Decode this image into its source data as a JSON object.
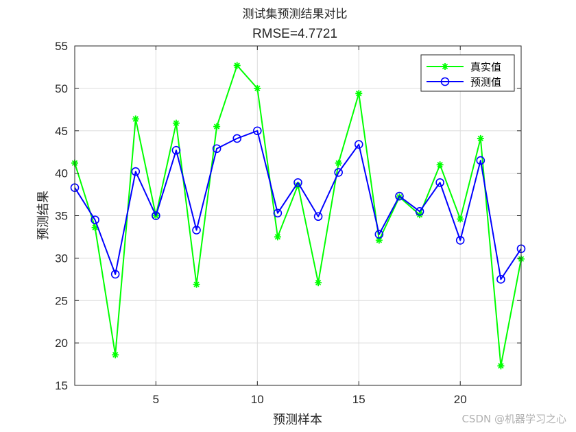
{
  "chart_data": {
    "type": "line",
    "title": "测试集预测结果对比",
    "subtitle": "RMSE=4.7721",
    "xlabel": "预测样本",
    "ylabel": "预测结果",
    "xlim": [
      1,
      23
    ],
    "ylim": [
      15,
      55
    ],
    "xticks": [
      5,
      10,
      15,
      20
    ],
    "yticks": [
      15,
      20,
      25,
      30,
      35,
      40,
      45,
      50,
      55
    ],
    "grid": true,
    "legend_position": "top-right",
    "x": [
      1,
      2,
      3,
      4,
      5,
      6,
      7,
      8,
      9,
      10,
      11,
      12,
      13,
      14,
      15,
      16,
      17,
      18,
      19,
      20,
      21,
      22,
      23
    ],
    "series": [
      {
        "name": "真实值",
        "color": "#00ff00",
        "marker": "asterisk",
        "values": [
          41.2,
          33.6,
          18.6,
          46.4,
          35.0,
          45.9,
          26.9,
          45.5,
          52.7,
          50.0,
          32.5,
          38.6,
          27.1,
          41.2,
          49.4,
          32.1,
          37.2,
          35.1,
          41.0,
          34.6,
          44.1,
          17.3,
          29.9
        ]
      },
      {
        "name": "预测值",
        "color": "#0000ff",
        "marker": "circle",
        "values": [
          38.3,
          34.5,
          28.1,
          40.2,
          35.0,
          42.7,
          33.3,
          42.9,
          44.1,
          45.0,
          35.3,
          38.9,
          34.9,
          40.1,
          43.4,
          32.8,
          37.3,
          35.5,
          38.9,
          32.1,
          41.5,
          27.5,
          31.1
        ]
      }
    ]
  },
  "watermark": "CSDN @机器学习之心"
}
